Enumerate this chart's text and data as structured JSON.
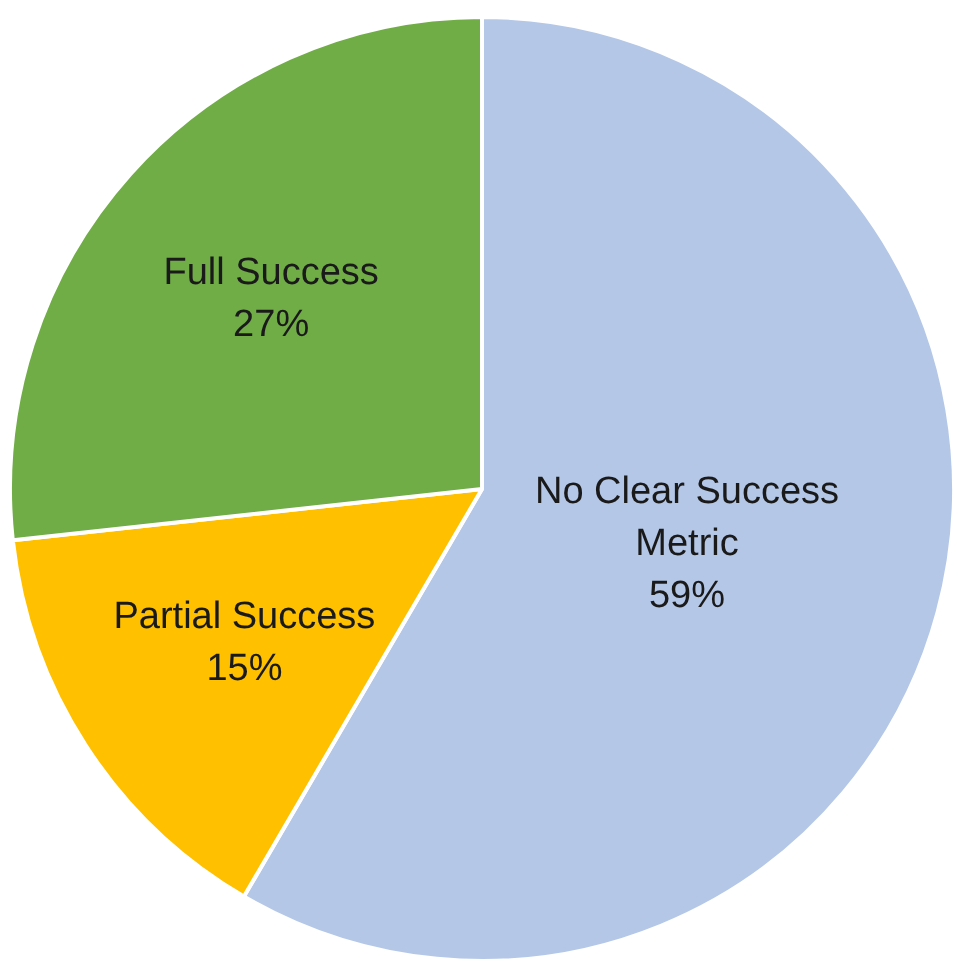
{
  "chart_data": {
    "type": "pie",
    "categories": [
      "No Clear Success Metric",
      "Partial Success",
      "Full Success"
    ],
    "values": [
      59,
      15,
      27
    ],
    "colors": [
      "#b4c7e7",
      "#ffc000",
      "#70ad47"
    ],
    "value_labels": [
      "59%",
      "15%",
      "27%"
    ],
    "legend": false
  }
}
